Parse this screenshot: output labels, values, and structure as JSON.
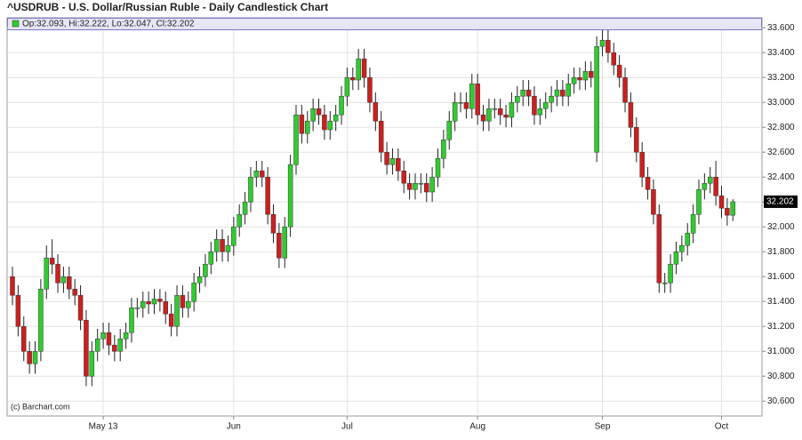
{
  "chart_data": {
    "type": "candlestick",
    "title": "^USDRUB - U.S. Dollar/Russian Ruble - Daily Candlestick Chart",
    "ohlc_label": "Op:32.093, Hi:32.222, Lo:32.047, Cl:32.202",
    "credit": "(c) Barchart.com",
    "up_color": "#2fcc2f",
    "down_color": "#cc1f1f",
    "categories": [
      null,
      null,
      null,
      null,
      null,
      null,
      null,
      null,
      null,
      null,
      null,
      null,
      null,
      null,
      null,
      null,
      "May 13",
      null,
      null,
      null,
      null,
      null,
      null,
      null,
      null,
      null,
      null,
      null,
      null,
      null,
      null,
      null,
      null,
      null,
      null,
      null,
      null,
      null,
      null,
      "Jun",
      null,
      null,
      null,
      null,
      null,
      null,
      null,
      null,
      null,
      null,
      null,
      null,
      null,
      null,
      null,
      null,
      null,
      null,
      null,
      "Jul",
      null,
      null,
      null,
      null,
      null,
      null,
      null,
      null,
      null,
      null,
      null,
      null,
      null,
      null,
      null,
      null,
      null,
      null,
      null,
      null,
      null,
      null,
      "Aug",
      null,
      null,
      null,
      null,
      null,
      null,
      null,
      null,
      null,
      null,
      null,
      null,
      null,
      null,
      null,
      null,
      null,
      null,
      null,
      null,
      null,
      "Sep",
      null,
      null,
      null,
      null,
      null,
      null,
      null,
      null,
      null,
      null,
      null,
      null,
      null,
      null,
      null,
      null,
      null,
      null,
      null,
      null,
      "Oct",
      null,
      null
    ],
    "open": [
      31.6,
      31.45,
      31.2,
      31.0,
      30.9,
      31.0,
      31.5,
      31.75,
      31.7,
      31.55,
      31.6,
      31.5,
      31.45,
      31.25,
      30.8,
      31.0,
      31.1,
      31.15,
      31.05,
      31.0,
      31.1,
      31.15,
      31.35,
      31.35,
      31.4,
      31.38,
      31.42,
      31.4,
      31.3,
      31.2,
      31.45,
      31.35,
      31.4,
      31.55,
      31.6,
      31.7,
      31.8,
      31.9,
      31.8,
      31.85,
      32.0,
      32.1,
      32.2,
      32.4,
      32.45,
      32.4,
      32.1,
      31.95,
      31.75,
      32.0,
      32.5,
      32.9,
      32.75,
      32.85,
      32.95,
      32.9,
      32.78,
      32.85,
      32.9,
      33.05,
      33.2,
      33.18,
      33.35,
      33.2,
      33.0,
      32.85,
      32.6,
      32.5,
      32.55,
      32.45,
      32.35,
      32.3,
      32.35,
      32.35,
      32.28,
      32.4,
      32.55,
      32.7,
      32.85,
      33.0,
      33.0,
      32.95,
      33.15,
      32.9,
      32.85,
      32.95,
      32.95,
      32.9,
      32.88,
      33.0,
      33.05,
      33.1,
      33.05,
      32.9,
      32.95,
      33.0,
      33.05,
      33.1,
      33.05,
      33.15,
      33.2,
      33.18,
      33.25,
      32.6,
      33.45,
      33.5,
      33.4,
      33.3,
      33.2,
      33.0,
      32.8,
      32.6,
      32.4,
      32.3,
      32.1,
      31.55,
      31.55,
      31.7,
      31.8,
      31.85,
      31.95,
      32.1,
      32.3,
      32.35,
      32.4,
      32.25,
      32.15,
      32.093
    ],
    "high": [
      31.68,
      31.53,
      31.28,
      31.08,
      31.08,
      31.58,
      31.85,
      31.9,
      31.78,
      31.68,
      31.68,
      31.58,
      31.53,
      31.33,
      31.08,
      31.18,
      31.23,
      31.23,
      31.13,
      31.18,
      31.23,
      31.43,
      31.43,
      31.48,
      31.48,
      31.5,
      31.5,
      31.48,
      31.38,
      31.53,
      31.53,
      31.48,
      31.63,
      31.68,
      31.78,
      31.88,
      31.98,
      31.98,
      31.93,
      32.08,
      32.18,
      32.28,
      32.48,
      32.53,
      32.53,
      32.48,
      32.18,
      32.03,
      32.08,
      32.58,
      32.98,
      32.98,
      32.93,
      33.03,
      33.03,
      32.98,
      32.93,
      32.98,
      33.13,
      33.28,
      33.28,
      33.43,
      33.43,
      33.28,
      33.08,
      32.93,
      32.68,
      32.63,
      32.63,
      32.53,
      32.43,
      32.43,
      32.43,
      32.43,
      32.48,
      32.63,
      32.78,
      32.93,
      33.08,
      33.08,
      33.08,
      33.23,
      33.23,
      32.98,
      33.03,
      33.03,
      33.03,
      32.98,
      33.08,
      33.13,
      33.18,
      33.18,
      33.13,
      33.03,
      33.08,
      33.13,
      33.18,
      33.18,
      33.23,
      33.28,
      33.28,
      33.33,
      33.33,
      33.53,
      33.58,
      33.58,
      33.48,
      33.38,
      33.28,
      33.08,
      32.88,
      32.68,
      32.48,
      32.38,
      32.18,
      31.63,
      31.78,
      31.88,
      31.93,
      32.03,
      32.18,
      32.38,
      32.43,
      32.48,
      32.53,
      32.33,
      32.23,
      32.222
    ],
    "low": [
      31.37,
      31.12,
      30.92,
      30.82,
      30.82,
      30.92,
      31.42,
      31.62,
      31.47,
      31.47,
      31.42,
      31.37,
      31.17,
      30.72,
      30.72,
      30.92,
      31.02,
      30.97,
      30.92,
      30.92,
      31.02,
      31.07,
      31.27,
      31.27,
      31.3,
      31.3,
      31.32,
      31.22,
      31.12,
      31.12,
      31.27,
      31.27,
      31.32,
      31.47,
      31.52,
      31.62,
      31.72,
      31.72,
      31.72,
      31.77,
      31.92,
      32.02,
      32.12,
      32.32,
      32.32,
      32.02,
      31.87,
      31.67,
      31.67,
      31.92,
      32.42,
      32.67,
      32.67,
      32.77,
      32.82,
      32.7,
      32.7,
      32.77,
      32.82,
      32.97,
      33.1,
      33.1,
      33.12,
      32.92,
      32.77,
      32.52,
      32.42,
      32.42,
      32.37,
      32.27,
      32.22,
      32.22,
      32.27,
      32.2,
      32.2,
      32.32,
      32.47,
      32.62,
      32.77,
      32.92,
      32.87,
      32.87,
      32.82,
      32.77,
      32.77,
      32.87,
      32.82,
      32.8,
      32.8,
      32.92,
      32.97,
      32.97,
      32.82,
      32.82,
      32.87,
      32.92,
      32.97,
      32.97,
      32.97,
      33.07,
      33.1,
      33.1,
      33.12,
      32.52,
      33.37,
      33.32,
      33.22,
      33.12,
      32.92,
      32.72,
      32.52,
      32.32,
      32.22,
      32.02,
      31.47,
      31.47,
      31.47,
      31.62,
      31.72,
      31.77,
      31.87,
      32.02,
      32.22,
      32.27,
      32.17,
      32.07,
      32.01,
      32.047
    ],
    "close": [
      31.45,
      31.2,
      31.0,
      30.9,
      31.0,
      31.5,
      31.75,
      31.7,
      31.55,
      31.6,
      31.5,
      31.45,
      31.25,
      30.8,
      31.0,
      31.1,
      31.15,
      31.05,
      31.0,
      31.1,
      31.15,
      31.35,
      31.35,
      31.4,
      31.38,
      31.42,
      31.4,
      31.3,
      31.2,
      31.45,
      31.35,
      31.4,
      31.55,
      31.6,
      31.7,
      31.8,
      31.9,
      31.8,
      31.85,
      32.0,
      32.1,
      32.2,
      32.4,
      32.45,
      32.4,
      32.1,
      31.95,
      31.75,
      32.0,
      32.5,
      32.9,
      32.75,
      32.85,
      32.95,
      32.9,
      32.78,
      32.85,
      32.9,
      33.05,
      33.2,
      33.18,
      33.35,
      33.2,
      33.0,
      32.85,
      32.6,
      32.5,
      32.55,
      32.45,
      32.35,
      32.3,
      32.35,
      32.35,
      32.28,
      32.4,
      32.55,
      32.7,
      32.85,
      33.0,
      33.0,
      32.95,
      33.15,
      32.9,
      32.85,
      32.95,
      32.95,
      32.9,
      32.88,
      33.0,
      33.05,
      33.1,
      33.05,
      32.9,
      32.95,
      33.0,
      33.05,
      33.1,
      33.05,
      33.15,
      33.2,
      33.18,
      33.25,
      33.2,
      33.45,
      33.5,
      33.4,
      33.3,
      33.2,
      33.0,
      32.8,
      32.6,
      32.4,
      32.3,
      32.1,
      31.55,
      31.55,
      31.7,
      31.8,
      31.85,
      31.95,
      32.1,
      32.3,
      32.35,
      32.4,
      32.25,
      32.15,
      32.093,
      32.202
    ],
    "ylim": [
      30.48,
      33.68
    ],
    "yticks": [
      {
        "value": 30.6,
        "label": "30.600"
      },
      {
        "value": 30.8,
        "label": "30.800"
      },
      {
        "value": 31.0,
        "label": "31.000"
      },
      {
        "value": 31.2,
        "label": "31.200"
      },
      {
        "value": 31.4,
        "label": "31.400"
      },
      {
        "value": 31.6,
        "label": "31.600"
      },
      {
        "value": 31.8,
        "label": "31.800"
      },
      {
        "value": 32.0,
        "label": "32.000"
      },
      {
        "value": 32.2,
        "label": "32.200"
      },
      {
        "value": 32.4,
        "label": "32.400"
      },
      {
        "value": 32.6,
        "label": "32.600"
      },
      {
        "value": 32.8,
        "label": "32.800"
      },
      {
        "value": 33.0,
        "label": "33.000"
      },
      {
        "value": 33.2,
        "label": "33.200"
      },
      {
        "value": 33.4,
        "label": "33.400"
      },
      {
        "value": 33.6,
        "label": "33.600"
      }
    ],
    "grid": true
  }
}
